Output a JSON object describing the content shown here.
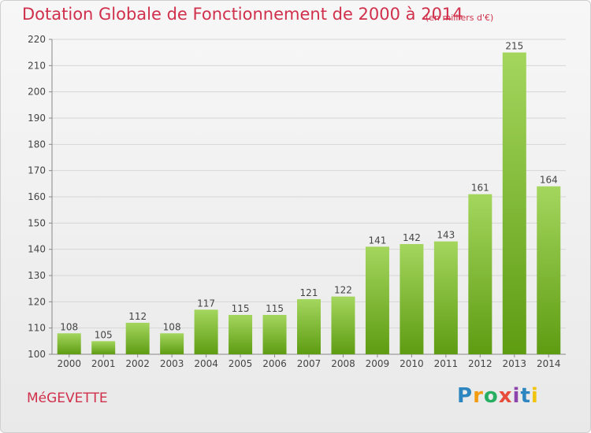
{
  "title": "Dotation Globale de Fonctionnement de 2000 à 2014",
  "unit_label": "(en milliers d'€)",
  "commune": "MéGEVETTE",
  "logo": {
    "letters": [
      "P",
      "r",
      "o",
      "x",
      "i",
      "t",
      "i"
    ],
    "colors": [
      "#2e86c1",
      "#f39c12",
      "#27ae60",
      "#e74c3c",
      "#8e44ad",
      "#2e86c1",
      "#f1c40f"
    ]
  },
  "colors": {
    "bar_top": "#a4d65e",
    "bar_bottom": "#5e9c12",
    "title": "#d0304b",
    "grid": "#d6d6d6"
  },
  "chart_data": {
    "type": "bar",
    "title": "Dotation Globale de Fonctionnement de 2000 à 2014",
    "subtitle": "(en milliers d'€)",
    "categories": [
      "2000",
      "2001",
      "2002",
      "2003",
      "2004",
      "2005",
      "2006",
      "2007",
      "2008",
      "2009",
      "2010",
      "2011",
      "2012",
      "2013",
      "2014"
    ],
    "values": [
      108,
      105,
      112,
      108,
      117,
      115,
      115,
      121,
      122,
      141,
      142,
      143,
      161,
      215,
      164
    ],
    "ylim": [
      100,
      220
    ],
    "yticks": [
      100,
      110,
      120,
      130,
      140,
      150,
      160,
      170,
      180,
      190,
      200,
      210,
      220
    ],
    "grid": true
  }
}
